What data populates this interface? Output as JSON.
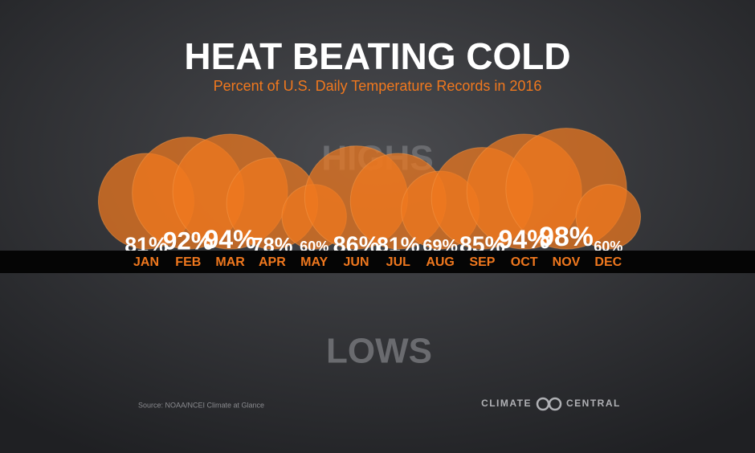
{
  "chart_data": {
    "type": "bubble",
    "title": "HEAT BEATING COLD",
    "subtitle": "Percent of U.S. Daily Temperature Records in 2016",
    "highs_label": "HIGHS",
    "lows_label": "LOWS",
    "categories": [
      "JAN",
      "FEB",
      "MAR",
      "APR",
      "MAY",
      "JUN",
      "JUL",
      "AUG",
      "SEP",
      "OCT",
      "NOV",
      "DEC"
    ],
    "values": [
      81,
      92,
      94,
      78,
      60,
      86,
      81,
      69,
      85,
      94,
      98,
      60
    ],
    "value_labels": [
      "81%",
      "92%",
      "94%",
      "78%",
      "60%",
      "86%",
      "81%",
      "69%",
      "85%",
      "94%",
      "98%",
      "60%"
    ],
    "color": "#f0781e",
    "source": "Source: NOAA/NCEI Climate at Glance",
    "brand": [
      "CLIMATE",
      "CENTRAL"
    ]
  }
}
